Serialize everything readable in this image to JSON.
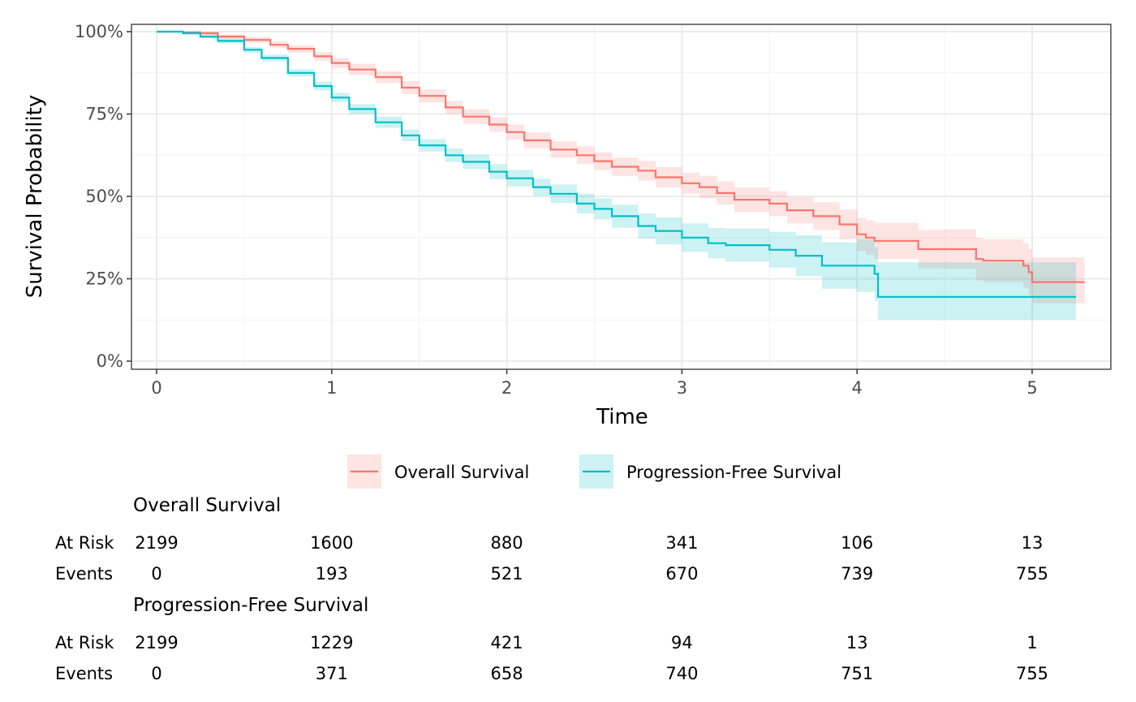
{
  "chart_data": {
    "type": "line",
    "subtype": "kaplan-meier",
    "title": "",
    "xlabel": "Time",
    "ylabel": "Survival Probability",
    "xlim": [
      0,
      5.3
    ],
    "ylim": [
      0,
      1
    ],
    "x_ticks": [
      0,
      1,
      2,
      3,
      4,
      5
    ],
    "x_tick_labels": [
      "0",
      "1",
      "2",
      "3",
      "4",
      "5"
    ],
    "y_ticks": [
      0,
      0.25,
      0.5,
      0.75,
      1.0
    ],
    "y_tick_labels": [
      "0%",
      "25%",
      "50%",
      "75%",
      "100%"
    ],
    "grid": true,
    "legend_position": "bottom",
    "series": [
      {
        "name": "Overall Survival",
        "color": "#F8766D",
        "fill": "#F8766D",
        "time": [
          0,
          0.15,
          0.25,
          0.35,
          0.5,
          0.65,
          0.75,
          0.9,
          1.0,
          1.1,
          1.25,
          1.4,
          1.5,
          1.65,
          1.75,
          1.9,
          2.0,
          2.1,
          2.25,
          2.4,
          2.5,
          2.6,
          2.75,
          2.85,
          3.0,
          3.1,
          3.2,
          3.3,
          3.5,
          3.6,
          3.75,
          3.9,
          4.0,
          4.05,
          4.1,
          4.35,
          4.5,
          4.68,
          4.72,
          4.95,
          4.98,
          5.0,
          5.3
        ],
        "survival": [
          1.0,
          0.998,
          0.995,
          0.985,
          0.975,
          0.96,
          0.948,
          0.925,
          0.905,
          0.885,
          0.862,
          0.83,
          0.805,
          0.77,
          0.742,
          0.718,
          0.695,
          0.67,
          0.642,
          0.625,
          0.607,
          0.59,
          0.578,
          0.558,
          0.54,
          0.528,
          0.51,
          0.49,
          0.478,
          0.458,
          0.44,
          0.415,
          0.385,
          0.375,
          0.365,
          0.34,
          0.34,
          0.31,
          0.305,
          0.29,
          0.27,
          0.24,
          0.24
        ],
        "lower": [
          1.0,
          0.995,
          0.99,
          0.978,
          0.966,
          0.95,
          0.937,
          0.912,
          0.89,
          0.868,
          0.844,
          0.81,
          0.785,
          0.75,
          0.72,
          0.696,
          0.672,
          0.646,
          0.617,
          0.598,
          0.58,
          0.562,
          0.548,
          0.527,
          0.508,
          0.494,
          0.475,
          0.453,
          0.44,
          0.418,
          0.398,
          0.37,
          0.335,
          0.323,
          0.31,
          0.282,
          0.28,
          0.245,
          0.24,
          0.222,
          0.2,
          0.175,
          0.175
        ],
        "upper": [
          1.0,
          1.0,
          1.0,
          0.992,
          0.984,
          0.97,
          0.959,
          0.938,
          0.92,
          0.902,
          0.88,
          0.85,
          0.825,
          0.79,
          0.764,
          0.74,
          0.718,
          0.694,
          0.667,
          0.652,
          0.634,
          0.618,
          0.608,
          0.589,
          0.572,
          0.562,
          0.545,
          0.527,
          0.516,
          0.498,
          0.482,
          0.46,
          0.435,
          0.427,
          0.42,
          0.398,
          0.4,
          0.375,
          0.37,
          0.358,
          0.34,
          0.315,
          0.315
        ]
      },
      {
        "name": "Progression-Free Survival",
        "color": "#00BFC4",
        "fill": "#00BFC4",
        "time": [
          0,
          0.15,
          0.25,
          0.35,
          0.5,
          0.6,
          0.75,
          0.9,
          1.0,
          1.1,
          1.25,
          1.4,
          1.5,
          1.65,
          1.75,
          1.9,
          2.0,
          2.15,
          2.25,
          2.4,
          2.5,
          2.6,
          2.75,
          2.85,
          3.0,
          3.15,
          3.25,
          3.5,
          3.65,
          3.8,
          4.0,
          4.1,
          4.12,
          5.25
        ],
        "survival": [
          1.0,
          0.995,
          0.985,
          0.972,
          0.945,
          0.92,
          0.875,
          0.835,
          0.8,
          0.765,
          0.725,
          0.685,
          0.655,
          0.625,
          0.605,
          0.575,
          0.555,
          0.528,
          0.508,
          0.478,
          0.462,
          0.44,
          0.41,
          0.395,
          0.375,
          0.358,
          0.352,
          0.338,
          0.32,
          0.29,
          0.29,
          0.265,
          0.195,
          0.195
        ],
        "lower": [
          1.0,
          0.992,
          0.98,
          0.965,
          0.936,
          0.91,
          0.864,
          0.822,
          0.786,
          0.75,
          0.708,
          0.667,
          0.636,
          0.604,
          0.583,
          0.552,
          0.53,
          0.502,
          0.48,
          0.448,
          0.43,
          0.405,
          0.372,
          0.354,
          0.332,
          0.312,
          0.302,
          0.284,
          0.258,
          0.22,
          0.21,
          0.185,
          0.125,
          0.125
        ],
        "upper": [
          1.0,
          0.998,
          0.99,
          0.979,
          0.954,
          0.93,
          0.886,
          0.848,
          0.814,
          0.78,
          0.742,
          0.703,
          0.674,
          0.646,
          0.627,
          0.598,
          0.58,
          0.554,
          0.536,
          0.508,
          0.494,
          0.475,
          0.448,
          0.436,
          0.418,
          0.404,
          0.402,
          0.392,
          0.382,
          0.36,
          0.37,
          0.345,
          0.3,
          0.3
        ]
      }
    ],
    "risk_table": {
      "time_points": [
        0,
        1,
        2,
        3,
        4,
        5
      ],
      "groups": [
        {
          "title": "Overall Survival",
          "rows": [
            {
              "label": "At Risk",
              "values": [
                "2199",
                "1600",
                "880",
                "341",
                "106",
                "13"
              ]
            },
            {
              "label": "Events",
              "values": [
                "0",
                "193",
                "521",
                "670",
                "739",
                "755"
              ]
            }
          ]
        },
        {
          "title": "Progression-Free Survival",
          "rows": [
            {
              "label": "At Risk",
              "values": [
                "2199",
                "1229",
                "421",
                "94",
                "13",
                "1"
              ]
            },
            {
              "label": "Events",
              "values": [
                "0",
                "371",
                "658",
                "740",
                "751",
                "755"
              ]
            }
          ]
        }
      ]
    }
  }
}
